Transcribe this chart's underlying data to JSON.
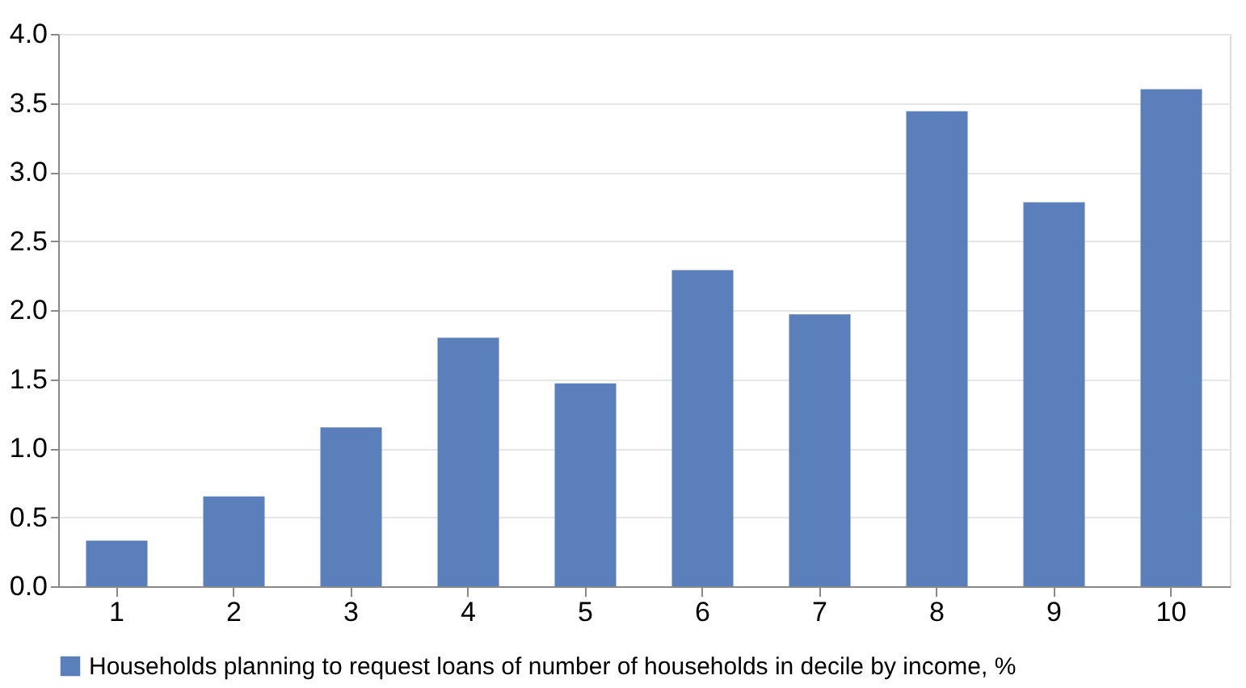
{
  "chart_data": {
    "type": "bar",
    "categories": [
      "1",
      "2",
      "3",
      "4",
      "5",
      "6",
      "7",
      "8",
      "9",
      "10"
    ],
    "series": [
      {
        "name": "Households planning to request loans of number of households in decile by income, %",
        "color": "#5b7fbb",
        "values": [
          0.33,
          0.65,
          1.15,
          1.8,
          1.47,
          2.29,
          1.97,
          3.44,
          2.78,
          3.6
        ]
      }
    ],
    "ylim": [
      0,
      4
    ],
    "yticks": [
      {
        "value": 0,
        "label": "0.0"
      },
      0.5,
      {
        "value": 1,
        "label": "1.0"
      },
      1.5,
      {
        "value": 2,
        "label": "2.0"
      },
      2.5,
      {
        "value": 3,
        "label": "3.0"
      },
      3.5,
      {
        "value": 4,
        "label": "4.0"
      }
    ],
    "grid": "y",
    "legend": "bottom"
  }
}
